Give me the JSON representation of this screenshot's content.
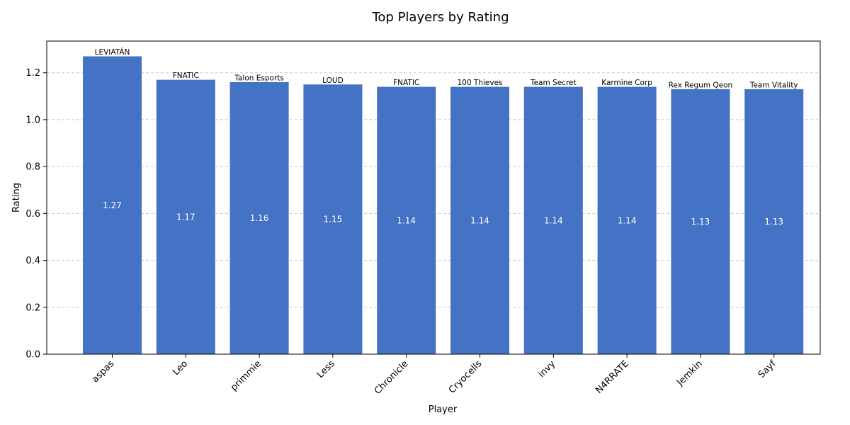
{
  "chart_data": {
    "type": "bar",
    "title": "Top Players by Rating",
    "xlabel": "Player",
    "ylabel": "Rating",
    "ylim": [
      0,
      1.335
    ],
    "yticks": [
      "0.0",
      "0.2",
      "0.4",
      "0.6",
      "0.8",
      "1.0",
      "1.2"
    ],
    "grid": "y-dashed",
    "bar_color": "#4472c4",
    "categories": [
      "aspas",
      "Leo",
      "primmie",
      "Less",
      "Chronicle",
      "Cryocells",
      "invy",
      "N4RRATE",
      "Jemkin",
      "Sayf"
    ],
    "values": [
      1.27,
      1.17,
      1.16,
      1.15,
      1.14,
      1.14,
      1.14,
      1.14,
      1.13,
      1.13
    ],
    "value_labels": [
      "1.27",
      "1.17",
      "1.16",
      "1.15",
      "1.14",
      "1.14",
      "1.14",
      "1.14",
      "1.13",
      "1.13"
    ],
    "teams": [
      "LEVIATÁN",
      "FNATIC",
      "Talon Esports",
      "LOUD",
      "FNATIC",
      "100 Thieves",
      "Team Secret",
      "Karmine Corp",
      "Rex Regum Qeon",
      "Team Vitality"
    ]
  }
}
